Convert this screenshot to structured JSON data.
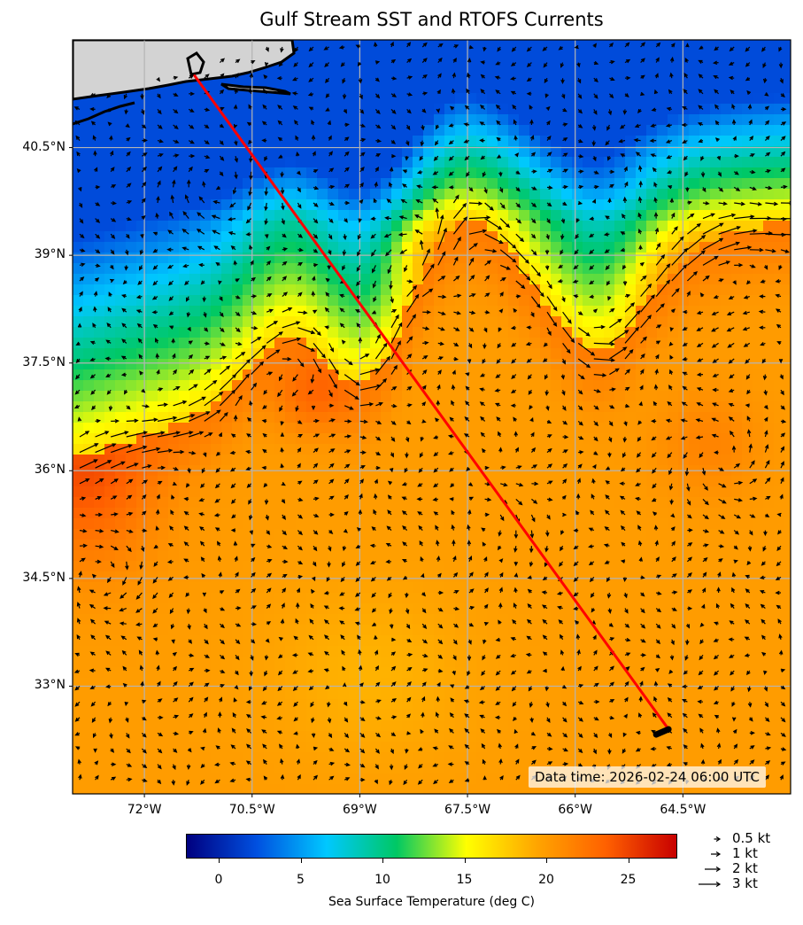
{
  "title": "Gulf Stream SST and RTOFS Currents",
  "map": {
    "lon_range": [
      -73.0,
      -63.0
    ],
    "lat_range": [
      31.5,
      42.0
    ],
    "lat_ticks": [
      "40.5°N",
      "39°N",
      "37.5°N",
      "36°N",
      "34.5°N",
      "33°N"
    ],
    "lat_tick_values": [
      40.5,
      39,
      37.5,
      36,
      34.5,
      33
    ],
    "lon_ticks": [
      "72°W",
      "70.5°W",
      "69°W",
      "67.5°W",
      "66°W",
      "64.5°W"
    ],
    "lon_tick_values": [
      -72,
      -70.5,
      -69,
      -67.5,
      -66,
      -64.5
    ],
    "grid": true,
    "land_color": "#d3d3d3",
    "route": {
      "color": "#ff0000",
      "start": {
        "lon": -71.3,
        "lat": 41.5
      },
      "end": {
        "lon": -64.7,
        "lat": 32.4
      }
    },
    "data_time": "Data time: 2026-02-24 06:00 UTC"
  },
  "colorbar": {
    "label": "Sea Surface Temperature (deg C)",
    "range": [
      -2,
      28
    ],
    "ticks": [
      "0",
      "5",
      "10",
      "15",
      "20",
      "25"
    ],
    "tick_values": [
      0,
      5,
      10,
      15,
      20,
      25
    ],
    "colors": [
      "#000080",
      "#0050e0",
      "#00c8ff",
      "#00c864",
      "#ffff00",
      "#ffa500",
      "#ff6000",
      "#c80000"
    ]
  },
  "legend": {
    "items": [
      {
        "label": "0.5 kt",
        "speed": 0.5
      },
      {
        "label": "1 kt",
        "speed": 1
      },
      {
        "label": "2 kt",
        "speed": 2
      },
      {
        "label": "3 kt",
        "speed": 3
      }
    ]
  }
}
